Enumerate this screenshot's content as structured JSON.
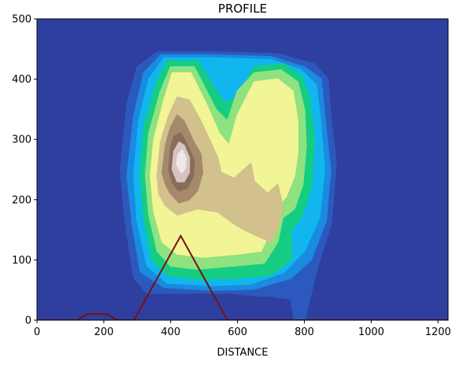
{
  "chart_data": {
    "type": "area",
    "title": "PROFILE",
    "xlabel": "DISTANCE",
    "ylabel": "",
    "xlim": [
      0,
      1230
    ],
    "ylim": [
      0,
      500
    ],
    "x_ticks": [
      0,
      200,
      400,
      600,
      800,
      1000,
      1200
    ],
    "y_ticks": [
      0,
      100,
      200,
      300,
      400,
      500
    ],
    "x_tick_labels": [
      "0",
      "200",
      "400",
      "600",
      "800",
      "1000",
      "1200"
    ],
    "y_tick_labels": [
      "0",
      "100",
      "200",
      "300",
      "400",
      "500"
    ],
    "background_color": "#2e3f9f",
    "colormap": "terrain",
    "grid": false,
    "legend": "none",
    "contour_levels": [
      {
        "level": 1,
        "color": "#2c59bd",
        "polygon": [
          [
            250,
            250
          ],
          [
            270,
            360
          ],
          [
            300,
            420
          ],
          [
            360,
            445
          ],
          [
            520,
            445
          ],
          [
            720,
            442
          ],
          [
            830,
            425
          ],
          [
            870,
            400
          ],
          [
            880,
            330
          ],
          [
            895,
            260
          ],
          [
            880,
            160
          ],
          [
            840,
            90
          ],
          [
            800,
            0
          ],
          [
            770,
            0
          ],
          [
            760,
            35
          ],
          [
            700,
            40
          ],
          [
            660,
            40
          ],
          [
            580,
            45
          ],
          [
            480,
            45
          ],
          [
            330,
            45
          ],
          [
            290,
            70
          ],
          [
            265,
            160
          ],
          [
            250,
            250
          ]
        ]
      },
      {
        "level": 2,
        "color": "#1a8be0",
        "polygon": [
          [
            270,
            240
          ],
          [
            290,
            340
          ],
          [
            320,
            410
          ],
          [
            370,
            440
          ],
          [
            520,
            440
          ],
          [
            700,
            437
          ],
          [
            800,
            420
          ],
          [
            850,
            400
          ],
          [
            860,
            340
          ],
          [
            878,
            250
          ],
          [
            865,
            165
          ],
          [
            820,
            100
          ],
          [
            760,
            70
          ],
          [
            650,
            52
          ],
          [
            520,
            50
          ],
          [
            380,
            55
          ],
          [
            310,
            80
          ],
          [
            285,
            160
          ],
          [
            270,
            240
          ]
        ]
      },
      {
        "level": 3,
        "color": "#10b6ed",
        "polygon": [
          [
            290,
            240
          ],
          [
            305,
            330
          ],
          [
            335,
            400
          ],
          [
            380,
            435
          ],
          [
            520,
            435
          ],
          [
            700,
            432
          ],
          [
            790,
            415
          ],
          [
            835,
            390
          ],
          [
            848,
            330
          ],
          [
            860,
            250
          ],
          [
            845,
            170
          ],
          [
            800,
            115
          ],
          [
            740,
            80
          ],
          [
            640,
            60
          ],
          [
            520,
            58
          ],
          [
            390,
            62
          ],
          [
            330,
            90
          ],
          [
            300,
            165
          ],
          [
            290,
            240
          ]
        ]
      },
      {
        "level": 4,
        "color": "#15cd82",
        "polygon": [
          [
            310,
            240
          ],
          [
            320,
            320
          ],
          [
            355,
            390
          ],
          [
            390,
            430
          ],
          [
            480,
            430
          ],
          [
            560,
            360
          ],
          [
            600,
            370
          ],
          [
            650,
            420
          ],
          [
            740,
            425
          ],
          [
            790,
            405
          ],
          [
            815,
            370
          ],
          [
            830,
            300
          ],
          [
            820,
            220
          ],
          [
            790,
            170
          ],
          [
            760,
            150
          ],
          [
            760,
            100
          ],
          [
            700,
            75
          ],
          [
            600,
            70
          ],
          [
            480,
            68
          ],
          [
            390,
            75
          ],
          [
            345,
            100
          ],
          [
            320,
            170
          ],
          [
            310,
            240
          ]
        ]
      },
      {
        "level": 5,
        "color": "#8ee27f",
        "polygon": [
          [
            325,
            240
          ],
          [
            335,
            310
          ],
          [
            370,
            380
          ],
          [
            400,
            420
          ],
          [
            470,
            420
          ],
          [
            535,
            350
          ],
          [
            570,
            330
          ],
          [
            600,
            380
          ],
          [
            650,
            410
          ],
          [
            730,
            415
          ],
          [
            780,
            395
          ],
          [
            800,
            350
          ],
          [
            805,
            290
          ],
          [
            795,
            225
          ],
          [
            770,
            185
          ],
          [
            735,
            170
          ],
          [
            720,
            130
          ],
          [
            680,
            95
          ],
          [
            580,
            90
          ],
          [
            480,
            85
          ],
          [
            400,
            90
          ],
          [
            360,
            115
          ],
          [
            335,
            175
          ],
          [
            325,
            240
          ]
        ]
      },
      {
        "level": 6,
        "color": "#f1f595",
        "polygon": [
          [
            340,
            240
          ],
          [
            350,
            300
          ],
          [
            380,
            365
          ],
          [
            405,
            410
          ],
          [
            460,
            410
          ],
          [
            505,
            360
          ],
          [
            545,
            310
          ],
          [
            575,
            290
          ],
          [
            600,
            340
          ],
          [
            650,
            395
          ],
          [
            720,
            400
          ],
          [
            765,
            380
          ],
          [
            780,
            330
          ],
          [
            780,
            280
          ],
          [
            770,
            240
          ],
          [
            745,
            205
          ],
          [
            720,
            190
          ],
          [
            700,
            150
          ],
          [
            670,
            115
          ],
          [
            600,
            110
          ],
          [
            500,
            105
          ],
          [
            420,
            110
          ],
          [
            375,
            130
          ],
          [
            350,
            180
          ],
          [
            340,
            240
          ]
        ]
      },
      {
        "level": 7,
        "color": "#d2c08d",
        "polygon": [
          [
            360,
            240
          ],
          [
            370,
            295
          ],
          [
            395,
            340
          ],
          [
            420,
            370
          ],
          [
            455,
            365
          ],
          [
            490,
            330
          ],
          [
            515,
            300
          ],
          [
            540,
            270
          ],
          [
            550,
            245
          ],
          [
            590,
            235
          ],
          [
            620,
            250
          ],
          [
            640,
            260
          ],
          [
            650,
            230
          ],
          [
            690,
            210
          ],
          [
            720,
            225
          ],
          [
            735,
            190
          ],
          [
            725,
            160
          ],
          [
            700,
            130
          ],
          [
            660,
            140
          ],
          [
            620,
            150
          ],
          [
            590,
            160
          ],
          [
            540,
            180
          ],
          [
            480,
            185
          ],
          [
            420,
            175
          ],
          [
            385,
            190
          ],
          [
            365,
            210
          ],
          [
            360,
            240
          ]
        ]
      },
      {
        "level": 8,
        "color": "#a48a6a",
        "polygon": [
          [
            375,
            245
          ],
          [
            385,
            290
          ],
          [
            400,
            320
          ],
          [
            420,
            340
          ],
          [
            440,
            330
          ],
          [
            465,
            300
          ],
          [
            490,
            275
          ],
          [
            495,
            245
          ],
          [
            480,
            215
          ],
          [
            455,
            200
          ],
          [
            425,
            195
          ],
          [
            400,
            210
          ],
          [
            385,
            225
          ],
          [
            375,
            245
          ]
        ]
      },
      {
        "level": 9,
        "color": "#8a6c5a",
        "polygon": [
          [
            395,
            250
          ],
          [
            400,
            285
          ],
          [
            410,
            305
          ],
          [
            430,
            310
          ],
          [
            450,
            290
          ],
          [
            470,
            265
          ],
          [
            468,
            240
          ],
          [
            450,
            220
          ],
          [
            425,
            215
          ],
          [
            405,
            228
          ],
          [
            395,
            250
          ]
        ]
      },
      {
        "level": 10,
        "color": "#d7c3c2",
        "polygon": [
          [
            405,
            250
          ],
          [
            410,
            280
          ],
          [
            425,
            295
          ],
          [
            440,
            290
          ],
          [
            455,
            270
          ],
          [
            455,
            245
          ],
          [
            440,
            230
          ],
          [
            420,
            230
          ],
          [
            405,
            250
          ]
        ]
      },
      {
        "level": 11,
        "color": "#eee8e6",
        "polygon": [
          [
            418,
            258
          ],
          [
            422,
            275
          ],
          [
            435,
            282
          ],
          [
            445,
            268
          ],
          [
            443,
            252
          ],
          [
            432,
            245
          ],
          [
            418,
            258
          ]
        ]
      }
    ],
    "series": [
      {
        "color": "#7a0d0d",
        "x": [
          0,
          120,
          150,
          210,
          240,
          290,
          430,
          570,
          600,
          1230
        ],
        "y": [
          0,
          0,
          10,
          10,
          0,
          0,
          140,
          0,
          0,
          0
        ]
      }
    ]
  }
}
